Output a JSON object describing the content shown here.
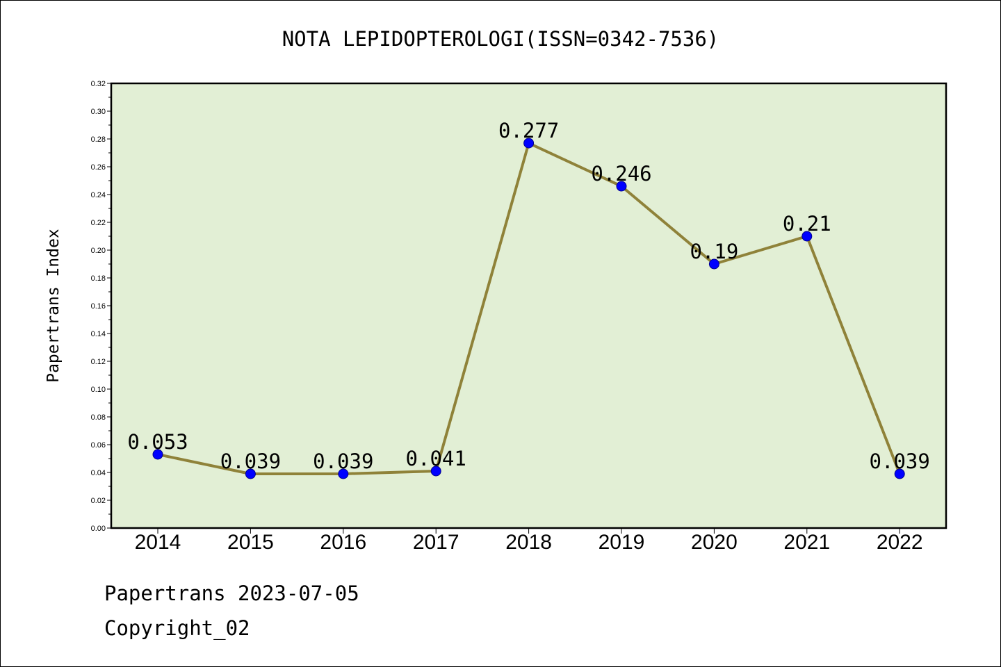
{
  "chart_data": {
    "type": "line",
    "title": "NOTA LEPIDOPTEROLOGI(ISSN=0342-7536)",
    "xlabel": "",
    "ylabel": "Papertrans Index",
    "categories": [
      "2014",
      "2015",
      "2016",
      "2017",
      "2018",
      "2019",
      "2020",
      "2021",
      "2022"
    ],
    "series": [
      {
        "values": [
          0.053,
          0.039,
          0.039,
          0.041,
          0.277,
          0.246,
          0.19,
          0.21,
          0.039
        ],
        "labels": [
          "0.053",
          "0.039",
          "0.039",
          "0.041",
          "0.277",
          "0.246",
          "0.19",
          "0.21",
          "0.039"
        ]
      }
    ],
    "ylim": [
      0,
      0.32
    ],
    "yticks": [
      "0.00",
      "0.02",
      "0.04",
      "0.06",
      "0.08",
      "0.10",
      "0.12",
      "0.14",
      "0.16",
      "0.18",
      "0.20",
      "0.22",
      "0.24",
      "0.26",
      "0.28",
      "0.30",
      "0.32"
    ],
    "grid": false,
    "legend": "none",
    "colors": {
      "plot_background": "#e2efd5",
      "line": "#8f8239",
      "marker_fill": "#0000ff",
      "marker_edge": "#00008b"
    }
  },
  "footer": {
    "line1": "Papertrans 2023-07-05",
    "line2": "Copyright_02"
  }
}
